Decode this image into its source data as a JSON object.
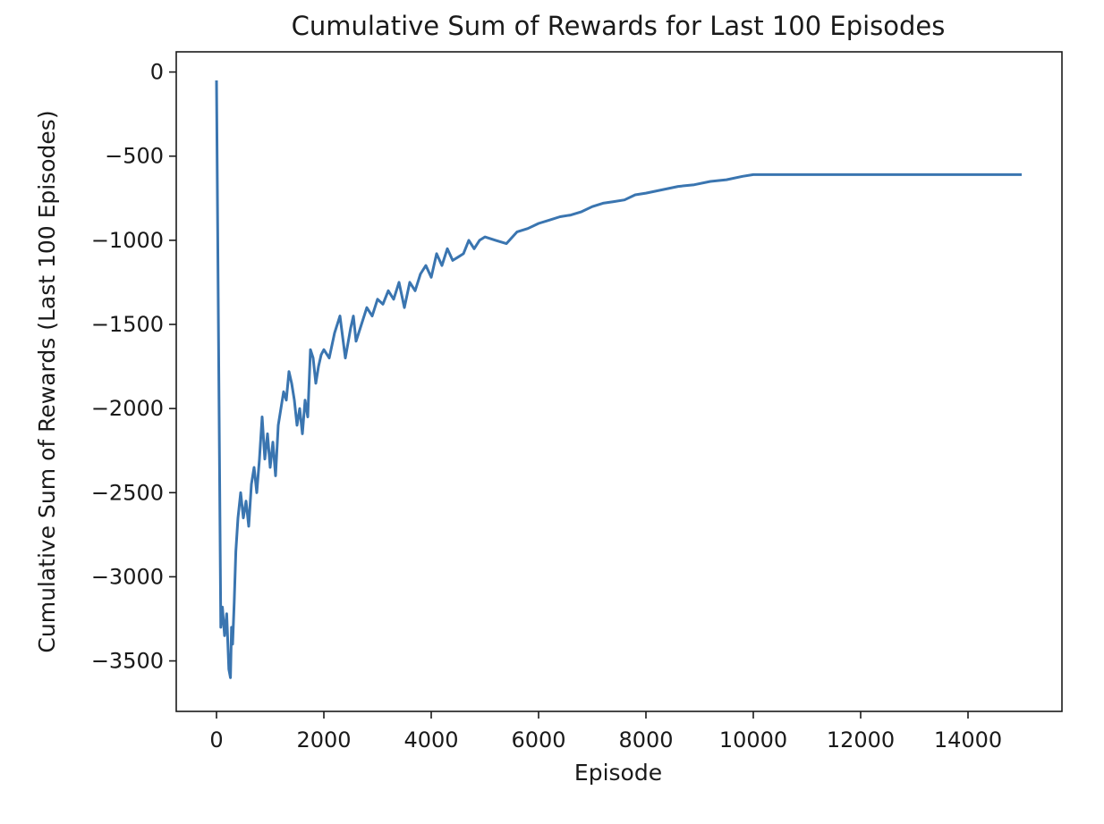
{
  "chart_data": {
    "type": "line",
    "title": "Cumulative Sum of Rewards for Last 100 Episodes",
    "xlabel": "Episode",
    "ylabel": "Cumulative Sum of Rewards (Last 100 Episodes)",
    "xlim": [
      -750,
      15750
    ],
    "ylim": [
      -3800,
      120
    ],
    "x_ticks": [
      0,
      2000,
      4000,
      6000,
      8000,
      10000,
      12000,
      14000
    ],
    "y_ticks": [
      0,
      -500,
      -1000,
      -1500,
      -2000,
      -2500,
      -3000,
      -3500
    ],
    "x_tick_labels": [
      "0",
      "2000",
      "4000",
      "6000",
      "8000",
      "10000",
      "12000",
      "14000"
    ],
    "y_tick_labels": [
      "0",
      "−500",
      "−1000",
      "−1500",
      "−2000",
      "−2500",
      "−3000",
      "−3500"
    ],
    "grid": false,
    "legend": "none",
    "line_color": "#3a75b0",
    "series": [
      {
        "x": [
          0,
          80,
          110,
          150,
          190,
          230,
          260,
          280,
          300,
          330,
          360,
          400,
          450,
          500,
          550,
          600,
          650,
          700,
          750,
          800,
          850,
          900,
          950,
          1000,
          1050,
          1100,
          1150,
          1200,
          1250,
          1300,
          1350,
          1400,
          1450,
          1500,
          1550,
          1600,
          1650,
          1700,
          1750,
          1800,
          1850,
          1900,
          1950,
          2000,
          2100,
          2200,
          2300,
          2400,
          2500,
          2550,
          2600,
          2650,
          2700,
          2800,
          2900,
          3000,
          3100,
          3200,
          3300,
          3400,
          3500,
          3600,
          3700,
          3800,
          3900,
          4000,
          4100,
          4200,
          4300,
          4400,
          4500,
          4600,
          4700,
          4800,
          4900,
          5000,
          5200,
          5400,
          5600,
          5800,
          6000,
          6200,
          6400,
          6600,
          6800,
          7000,
          7200,
          7400,
          7600,
          7800,
          8000,
          8300,
          8600,
          8900,
          9200,
          9500,
          9800,
          10000,
          11000,
          12000,
          13000,
          14000,
          15000
        ],
        "values": [
          -50,
          -3300,
          -3180,
          -3350,
          -3220,
          -3550,
          -3600,
          -3300,
          -3400,
          -3150,
          -2850,
          -2650,
          -2500,
          -2650,
          -2550,
          -2700,
          -2450,
          -2350,
          -2500,
          -2300,
          -2050,
          -2300,
          -2150,
          -2350,
          -2200,
          -2400,
          -2100,
          -2000,
          -1900,
          -1950,
          -1780,
          -1850,
          -1950,
          -2100,
          -2000,
          -2150,
          -1950,
          -2050,
          -1650,
          -1700,
          -1850,
          -1750,
          -1680,
          -1650,
          -1700,
          -1550,
          -1450,
          -1700,
          -1520,
          -1450,
          -1600,
          -1550,
          -1500,
          -1400,
          -1450,
          -1350,
          -1380,
          -1300,
          -1350,
          -1250,
          -1400,
          -1250,
          -1300,
          -1200,
          -1150,
          -1220,
          -1080,
          -1150,
          -1050,
          -1120,
          -1100,
          -1080,
          -1000,
          -1050,
          -1000,
          -980,
          -1000,
          -1020,
          -950,
          -930,
          -900,
          -880,
          -860,
          -850,
          -830,
          -800,
          -780,
          -770,
          -760,
          -730,
          -720,
          -700,
          -680,
          -670,
          -650,
          -640,
          -620,
          -610,
          -610,
          -610,
          -610,
          -610,
          -610
        ]
      }
    ]
  }
}
